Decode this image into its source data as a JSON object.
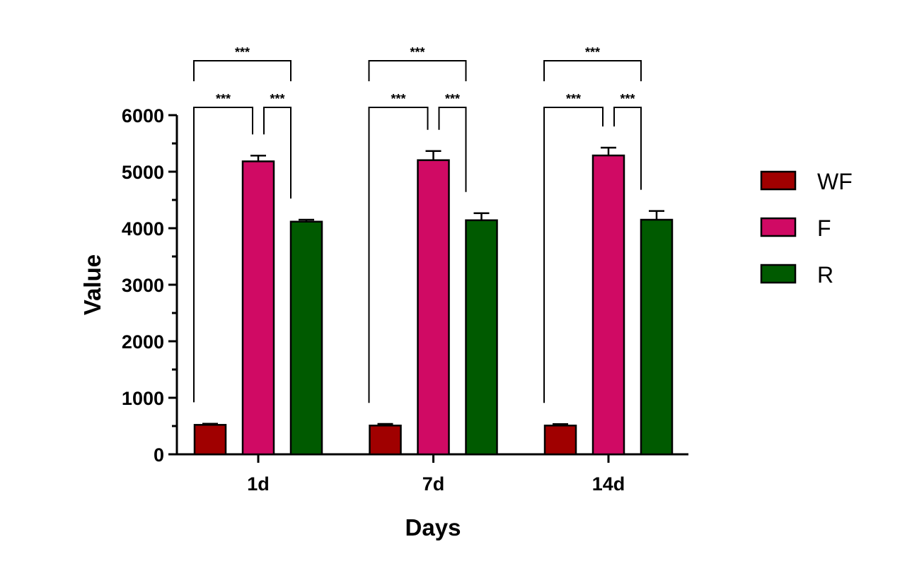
{
  "chart_data": {
    "type": "bar",
    "title": "",
    "xlabel": "Days",
    "ylabel": "Value",
    "ylim": [
      0,
      6000
    ],
    "yticks": [
      "0",
      "1000",
      "2000",
      "3000",
      "4000",
      "5000",
      "6000"
    ],
    "categories": [
      "1d",
      "7d",
      "14d"
    ],
    "series": [
      {
        "name": "WF",
        "color": "#A00000",
        "values": [
          521,
          509,
          509
        ],
        "error": [
          20,
          28,
          25
        ]
      },
      {
        "name": "F",
        "color": "#D00A64",
        "values": [
          5183,
          5204,
          5287
        ],
        "error": [
          101,
          162,
          138
        ]
      },
      {
        "name": "R",
        "color": "#005A00",
        "values": [
          4116,
          4141,
          4150
        ],
        "error": [
          34,
          125,
          154
        ]
      }
    ],
    "significance": [
      {
        "pair": [
          "WF",
          "F"
        ],
        "label": "***"
      },
      {
        "pair": [
          "F",
          "R"
        ],
        "label": "***"
      },
      {
        "pair": [
          "WF",
          "R"
        ],
        "label": "***"
      }
    ],
    "legend": "right",
    "grid": false
  }
}
